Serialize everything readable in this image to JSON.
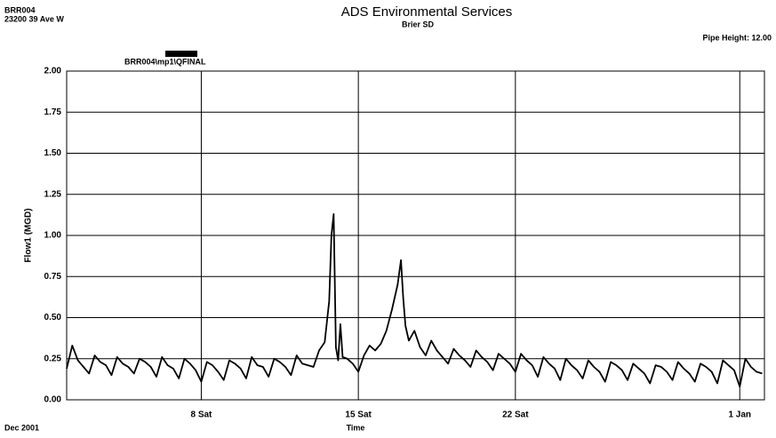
{
  "chart_data": {
    "type": "line",
    "title": "ADS Environmental Services",
    "subtitle": "Brier SD",
    "site_id": "BRR004",
    "address": "23200 39 Ave W",
    "pipe_height": "Pipe Height: 12.00",
    "period": "Dec 2001",
    "xlabel": "Time",
    "ylabel": "Flow1 (MGD)",
    "xlim": [
      2,
      33.1
    ],
    "xticks": [
      {
        "value": 8,
        "label": "8 Sat"
      },
      {
        "value": 15,
        "label": "15 Sat"
      },
      {
        "value": 22,
        "label": "22 Sat"
      },
      {
        "value": 32,
        "label": "1 Jan"
      }
    ],
    "ylim": [
      0,
      2
    ],
    "yticks": [
      {
        "value": 0,
        "label": "0.00"
      },
      {
        "value": 0.25,
        "label": "0.25"
      },
      {
        "value": 0.5,
        "label": "0.50"
      },
      {
        "value": 0.75,
        "label": "0.75"
      },
      {
        "value": 1,
        "label": "1.00"
      },
      {
        "value": 1.25,
        "label": "1.25"
      },
      {
        "value": 1.5,
        "label": "1.50"
      },
      {
        "value": 1.75,
        "label": "1.75"
      },
      {
        "value": 2,
        "label": "2.00"
      }
    ],
    "grid": true,
    "x": [
      2,
      2.25,
      2.5,
      2.75,
      3,
      3.25,
      3.5,
      3.75,
      4,
      4.25,
      4.5,
      4.75,
      5,
      5.25,
      5.5,
      5.75,
      6,
      6.25,
      6.5,
      6.75,
      7,
      7.25,
      7.5,
      7.75,
      8,
      8.25,
      8.5,
      8.75,
      9,
      9.25,
      9.5,
      9.75,
      10,
      10.25,
      10.5,
      10.75,
      11,
      11.25,
      11.5,
      11.75,
      12,
      12.25,
      12.5,
      12.75,
      13,
      13.25,
      13.5,
      13.7,
      13.8,
      13.9,
      14,
      14.1,
      14.2,
      14.3,
      14.5,
      14.75,
      15,
      15.25,
      15.5,
      15.75,
      16,
      16.25,
      16.5,
      16.75,
      16.9,
      17,
      17.1,
      17.25,
      17.5,
      17.75,
      18,
      18.25,
      18.5,
      18.75,
      19,
      19.25,
      19.5,
      19.75,
      20,
      20.25,
      20.5,
      20.75,
      21,
      21.25,
      21.5,
      21.75,
      22,
      22.25,
      22.5,
      22.75,
      23,
      23.25,
      23.5,
      23.75,
      24,
      24.25,
      24.5,
      24.75,
      25,
      25.25,
      25.5,
      25.75,
      26,
      26.25,
      26.5,
      26.75,
      27,
      27.25,
      27.5,
      27.75,
      28,
      28.25,
      28.5,
      28.75,
      29,
      29.25,
      29.5,
      29.75,
      30,
      30.25,
      30.5,
      30.75,
      31,
      31.25,
      31.5,
      31.75,
      32,
      32.25,
      32.5,
      32.75,
      33
    ],
    "series": [
      {
        "name": "BRR004\\mp1\\QFINAL",
        "color": "#000000",
        "values": [
          0.19,
          0.33,
          0.24,
          0.2,
          0.16,
          0.27,
          0.23,
          0.21,
          0.15,
          0.26,
          0.22,
          0.2,
          0.16,
          0.25,
          0.23,
          0.2,
          0.14,
          0.26,
          0.21,
          0.19,
          0.13,
          0.25,
          0.22,
          0.18,
          0.11,
          0.23,
          0.21,
          0.17,
          0.12,
          0.24,
          0.22,
          0.19,
          0.13,
          0.26,
          0.21,
          0.2,
          0.14,
          0.25,
          0.23,
          0.2,
          0.15,
          0.27,
          0.22,
          0.21,
          0.2,
          0.3,
          0.35,
          0.6,
          1.0,
          1.13,
          0.32,
          0.24,
          0.46,
          0.26,
          0.25,
          0.22,
          0.17,
          0.27,
          0.33,
          0.3,
          0.34,
          0.42,
          0.55,
          0.7,
          0.85,
          0.62,
          0.45,
          0.36,
          0.42,
          0.32,
          0.27,
          0.36,
          0.3,
          0.26,
          0.22,
          0.31,
          0.27,
          0.24,
          0.2,
          0.3,
          0.26,
          0.23,
          0.18,
          0.28,
          0.25,
          0.22,
          0.17,
          0.28,
          0.24,
          0.21,
          0.14,
          0.26,
          0.22,
          0.19,
          0.12,
          0.25,
          0.21,
          0.18,
          0.13,
          0.24,
          0.2,
          0.17,
          0.11,
          0.23,
          0.21,
          0.18,
          0.12,
          0.22,
          0.19,
          0.16,
          0.1,
          0.21,
          0.2,
          0.17,
          0.12,
          0.23,
          0.19,
          0.16,
          0.11,
          0.22,
          0.2,
          0.17,
          0.1,
          0.24,
          0.21,
          0.18,
          0.08,
          0.25,
          0.2,
          0.17,
          0.16
        ]
      }
    ]
  }
}
